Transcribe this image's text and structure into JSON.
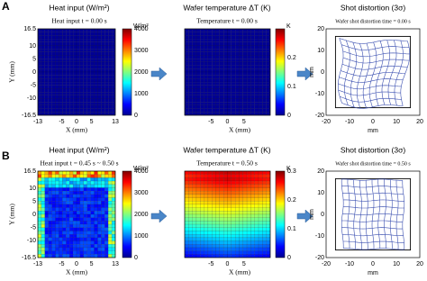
{
  "panels": [
    {
      "label": "A",
      "heat": {
        "title": "Heat input (W/m²)",
        "subtitle": "Heat input t = 0.00 s",
        "y_label": "Y (mm)",
        "x_label": "X (mm)",
        "yticks": [
          16.5,
          10,
          5,
          0,
          -5,
          -10,
          -16.5
        ],
        "xticks": [
          -13,
          -5,
          0,
          5,
          13
        ],
        "colorbar_ticks": [
          4000,
          3000,
          2000,
          1000,
          0
        ],
        "colorbar_unit": "W/m²"
      },
      "temperature": {
        "title": "Wafer temperature ΔT (K)",
        "subtitle": "Temperature t = 0.00 s",
        "x_label": "X (mm)",
        "xticks": [
          -5,
          0,
          5
        ],
        "colorbar_ticks": [
          0.2,
          0.1,
          0
        ],
        "colorbar_unit": "K"
      },
      "distortion": {
        "title": "Shot distortion (3σ)",
        "subtitle": "Wafer shot distortion time = 0.00 s",
        "x_label": "mm",
        "y_label": "mm",
        "xticks": [
          -20,
          -10,
          0,
          10,
          20
        ],
        "yticks": [
          20,
          10,
          0,
          -10,
          -20
        ]
      }
    },
    {
      "label": "B",
      "heat": {
        "title": "Heat input (W/m²)",
        "subtitle": "Heat input t = 0.45 s ~ 0.50 s",
        "y_label": "Y (mm)",
        "x_label": "X (mm)",
        "yticks": [
          16.5,
          10,
          5,
          0,
          -5,
          -10,
          -16.5
        ],
        "xticks": [
          -13,
          -5,
          0,
          5,
          13
        ],
        "colorbar_ticks": [
          4000,
          3000,
          2000,
          1000,
          0
        ],
        "colorbar_unit": "W/m²"
      },
      "temperature": {
        "title": "Wafer temperature ΔT (K)",
        "subtitle": "Temperature t = 0.50 s",
        "x_label": "X (mm)",
        "xticks": [
          -5,
          0,
          5
        ],
        "colorbar_ticks": [
          0.3,
          0.2,
          0.1,
          0
        ],
        "colorbar_unit": "K"
      },
      "distortion": {
        "title": "Shot distortion (3σ)",
        "subtitle": "Wafer shot distortion time = 0.50 s",
        "x_label": "mm",
        "y_label": "mm",
        "xticks": [
          -20,
          -10,
          0,
          10,
          20
        ],
        "yticks": [
          20,
          10,
          0,
          -10,
          -20
        ]
      }
    }
  ]
}
